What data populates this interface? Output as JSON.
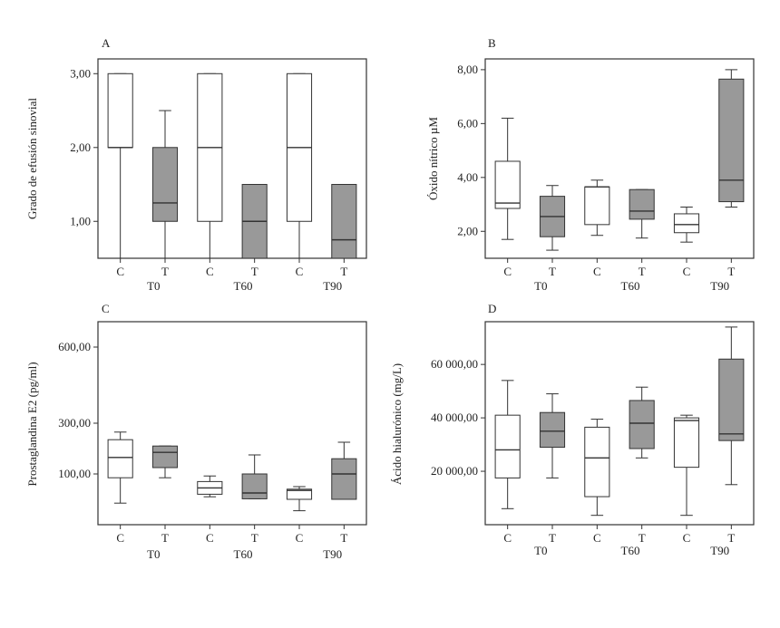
{
  "colors": {
    "control": "#ffffff",
    "treated": "#999999",
    "stroke": "#333333"
  },
  "chart_data": [
    {
      "type": "boxplot",
      "panel_label": "A",
      "ylabel": "Grado de efusión sinovial",
      "ylim": [
        0.5,
        3.2
      ],
      "yticks": [
        1,
        2,
        3
      ],
      "ytick_labels": [
        "1,00",
        "2,00",
        "3,00"
      ],
      "categories": [
        "C",
        "T",
        "C",
        "T",
        "C",
        "T"
      ],
      "groups": [
        "T0",
        "T60",
        "T90"
      ],
      "boxes": [
        {
          "cat": "C",
          "fill": "control",
          "whislo": 0.5,
          "q1": 2.0,
          "med": 2.0,
          "q3": 3.0,
          "whishi": 3.0
        },
        {
          "cat": "T",
          "fill": "treated",
          "whislo": 0.5,
          "q1": 1.0,
          "med": 1.25,
          "q3": 2.0,
          "whishi": 2.5
        },
        {
          "cat": "C",
          "fill": "control",
          "whislo": 0.5,
          "q1": 1.0,
          "med": 2.0,
          "q3": 3.0,
          "whishi": 3.0
        },
        {
          "cat": "T",
          "fill": "treated",
          "whislo": 0.5,
          "q1": 0.5,
          "med": 1.0,
          "q3": 1.5,
          "whishi": 1.5
        },
        {
          "cat": "C",
          "fill": "control",
          "whislo": 0.5,
          "q1": 1.0,
          "med": 2.0,
          "q3": 3.0,
          "whishi": 3.0
        },
        {
          "cat": "T",
          "fill": "treated",
          "whislo": 0.5,
          "q1": 0.5,
          "med": 0.75,
          "q3": 1.5,
          "whishi": 1.5
        }
      ]
    },
    {
      "type": "boxplot",
      "panel_label": "B",
      "ylabel": "Óxido nítrico µM",
      "ylim": [
        1.0,
        8.4
      ],
      "yticks": [
        2,
        4,
        6,
        8
      ],
      "ytick_labels": [
        "2,00",
        "4,00",
        "6,00",
        "8,00"
      ],
      "categories": [
        "C",
        "T",
        "C",
        "T",
        "C",
        "T"
      ],
      "groups": [
        "T0",
        "T60",
        "T90"
      ],
      "boxes": [
        {
          "cat": "C",
          "fill": "control",
          "whislo": 1.7,
          "q1": 2.85,
          "med": 3.05,
          "q3": 4.6,
          "whishi": 6.2
        },
        {
          "cat": "T",
          "fill": "treated",
          "whislo": 1.3,
          "q1": 1.8,
          "med": 2.55,
          "q3": 3.3,
          "whishi": 3.7
        },
        {
          "cat": "C",
          "fill": "control",
          "whislo": 1.85,
          "q1": 2.25,
          "med": 3.65,
          "q3": 3.65,
          "whishi": 3.9
        },
        {
          "cat": "T",
          "fill": "treated",
          "whislo": 1.75,
          "q1": 2.45,
          "med": 2.75,
          "q3": 3.55,
          "whishi": 3.55
        },
        {
          "cat": "C",
          "fill": "control",
          "whislo": 1.6,
          "q1": 1.95,
          "med": 2.25,
          "q3": 2.65,
          "whishi": 2.9
        },
        {
          "cat": "T",
          "fill": "treated",
          "whislo": 2.9,
          "q1": 3.1,
          "med": 3.9,
          "q3": 7.65,
          "whishi": 8.0
        }
      ]
    },
    {
      "type": "boxplot",
      "panel_label": "C",
      "ylabel": "Prostaglandina E2 (pg/ml)",
      "ylim": [
        -100,
        700
      ],
      "yticks": [
        100,
        300,
        600
      ],
      "ytick_labels": [
        "100,00",
        "300,00",
        "600,00"
      ],
      "categories": [
        "C",
        "T",
        "C",
        "T",
        "C",
        "T"
      ],
      "groups": [
        "T0",
        "T60",
        "T90"
      ],
      "boxes": [
        {
          "cat": "C",
          "fill": "control",
          "whislo": -15,
          "q1": 85,
          "med": 165,
          "q3": 235,
          "whishi": 265
        },
        {
          "cat": "T",
          "fill": "treated",
          "whislo": 85,
          "q1": 125,
          "med": 185,
          "q3": 210,
          "whishi": 210
        },
        {
          "cat": "C",
          "fill": "control",
          "whislo": 10,
          "q1": 20,
          "med": 45,
          "q3": 70,
          "whishi": 92
        },
        {
          "cat": "T",
          "fill": "treated",
          "whislo": 2,
          "q1": 2,
          "med": 25,
          "q3": 100,
          "whishi": 175
        },
        {
          "cat": "C",
          "fill": "control",
          "whislo": -45,
          "q1": 0,
          "med": 35,
          "q3": 40,
          "whishi": 50
        },
        {
          "cat": "T",
          "fill": "treated",
          "whislo": 0,
          "q1": 0,
          "med": 100,
          "q3": 160,
          "whishi": 225
        }
      ]
    },
    {
      "type": "boxplot",
      "panel_label": "D",
      "ylabel": "Ácido hialurónico (mg/L)",
      "ylim": [
        0,
        76000
      ],
      "yticks": [
        20000,
        40000,
        60000
      ],
      "ytick_labels": [
        "20 000,00",
        "40 000,00",
        "60 000,00"
      ],
      "categories": [
        "C",
        "T",
        "C",
        "T",
        "C",
        "T"
      ],
      "groups": [
        "T0",
        "T60",
        "T90"
      ],
      "boxes": [
        {
          "cat": "C",
          "fill": "control",
          "whislo": 6000,
          "q1": 17500,
          "med": 28000,
          "q3": 41000,
          "whishi": 54000
        },
        {
          "cat": "T",
          "fill": "treated",
          "whislo": 17500,
          "q1": 29000,
          "med": 35000,
          "q3": 42000,
          "whishi": 49000
        },
        {
          "cat": "C",
          "fill": "control",
          "whislo": 3500,
          "q1": 10500,
          "med": 25000,
          "q3": 36500,
          "whishi": 39500
        },
        {
          "cat": "T",
          "fill": "treated",
          "whislo": 25000,
          "q1": 28500,
          "med": 38000,
          "q3": 46500,
          "whishi": 51500
        },
        {
          "cat": "C",
          "fill": "control",
          "whislo": 3500,
          "q1": 21500,
          "med": 39000,
          "q3": 40000,
          "whishi": 41000
        },
        {
          "cat": "T",
          "fill": "treated",
          "whislo": 15000,
          "q1": 31500,
          "med": 34000,
          "q3": 62000,
          "whishi": 74000
        }
      ]
    }
  ]
}
